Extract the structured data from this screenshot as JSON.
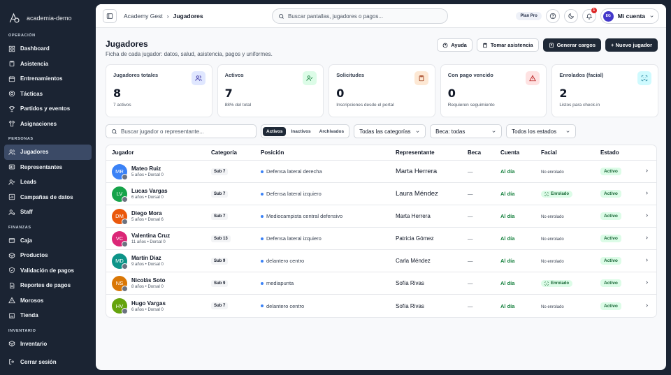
{
  "brand": {
    "name": "academia-demo"
  },
  "sidebar": {
    "sections": [
      {
        "title": "OPERACIÓN",
        "items": [
          {
            "label": "Dashboard",
            "icon": "grid-icon"
          },
          {
            "label": "Asistencia",
            "icon": "clipboard-icon"
          },
          {
            "label": "Entrenamientos",
            "icon": "calendar-icon"
          },
          {
            "label": "Tácticas",
            "icon": "target-icon"
          },
          {
            "label": "Partidos y eventos",
            "icon": "trophy-icon"
          },
          {
            "label": "Asignaciones",
            "icon": "shirt-icon"
          }
        ]
      },
      {
        "title": "PERSONAS",
        "items": [
          {
            "label": "Jugadores",
            "icon": "users-icon",
            "active": true
          },
          {
            "label": "Representantes",
            "icon": "id-card-icon"
          },
          {
            "label": "Leads",
            "icon": "user-plus-icon"
          },
          {
            "label": "Campañas de datos",
            "icon": "chart-icon"
          },
          {
            "label": "Staff",
            "icon": "user-gear-icon"
          }
        ]
      },
      {
        "title": "FINANZAS",
        "items": [
          {
            "label": "Caja",
            "icon": "wallet-icon"
          },
          {
            "label": "Productos",
            "icon": "box-icon"
          },
          {
            "label": "Validación de pagos",
            "icon": "shield-check-icon"
          },
          {
            "label": "Reportes de pagos",
            "icon": "file-icon"
          },
          {
            "label": "Morosos",
            "icon": "alert-icon"
          },
          {
            "label": "Tienda",
            "icon": "store-icon"
          }
        ]
      },
      {
        "title": "INVENTARIO",
        "items": [
          {
            "label": "Inventario",
            "icon": "package-icon"
          }
        ]
      }
    ],
    "logout": "Cerrar sesión"
  },
  "topbar": {
    "breadcrumb_root": "Academy Gest",
    "breadcrumb_sep": "›",
    "breadcrumb_current": "Jugadores",
    "search_placeholder": "Buscar pantallas, jugadores o pagos...",
    "plan": "Plan Pro",
    "notif_count": "1",
    "avatar_initials": "EG",
    "account_label": "Mi cuenta"
  },
  "page": {
    "title": "Jugadores",
    "subtitle": "Ficha de cada jugador: datos, salud, asistencia, pagos y uniformes.",
    "actions": {
      "help": "Ayuda",
      "attendance": "Tomar asistencia",
      "charges": "Generar cargos",
      "new_player": "+ Nuevo jugador"
    }
  },
  "stats": [
    {
      "label": "Jugadores totales",
      "value": "8",
      "sub": "7 activos",
      "icon": "users-icon",
      "bg": "#e0e7ff",
      "fg": "#3730a3"
    },
    {
      "label": "Activos",
      "value": "7",
      "sub": "88% del total",
      "icon": "user-check-icon",
      "bg": "#dcfce7",
      "fg": "#15803d"
    },
    {
      "label": "Solicitudes",
      "value": "0",
      "sub": "Inscripciones desde el portal",
      "icon": "clipboard-icon",
      "bg": "#fde8d4",
      "fg": "#9a3412"
    },
    {
      "label": "Con pago vencido",
      "value": "0",
      "sub": "Requieren seguimiento",
      "icon": "alert-icon",
      "bg": "#fee2e2",
      "fg": "#b91c1c"
    },
    {
      "label": "Enrolados (facial)",
      "value": "2",
      "sub": "Listos para check-in",
      "icon": "face-scan-icon",
      "bg": "#cffafe",
      "fg": "#0e7490"
    }
  ],
  "filters": {
    "search_placeholder": "Buscar jugador o representante...",
    "segments": [
      "Activos",
      "Inactivos",
      "Archivados"
    ],
    "category": "Todas las categorías",
    "beca": "Beca: todas",
    "estado": "Todos los estados"
  },
  "table": {
    "headers": {
      "jugador": "Jugador",
      "categoria": "Categoría",
      "posicion": "Posición",
      "representante": "Representante",
      "beca": "Beca",
      "cuenta": "Cuenta",
      "facial": "Facial",
      "estado": "Estado"
    },
    "rows": [
      {
        "initials": "MR",
        "color": "#3b82f6",
        "name": "Mateo Ruiz",
        "meta": "5 años • Dorsal 0",
        "cat": "Sub 7",
        "pos": "Defensa lateral derecha",
        "rep": "Marta Herrera",
        "rep_small": false,
        "beca": "—",
        "cuenta": "Al día",
        "facial": "No enrolado",
        "enrolled": false,
        "estado": "Activo"
      },
      {
        "initials": "LV",
        "color": "#16a34a",
        "name": "Lucas Vargas",
        "meta": "6 años • Dorsal 0",
        "cat": "Sub 7",
        "pos": "Defensa lateral izquiero",
        "rep": "Laura Méndez",
        "rep_small": false,
        "beca": "—",
        "cuenta": "Al día",
        "facial": "Enrolado",
        "enrolled": true,
        "estado": "Activo"
      },
      {
        "initials": "DM",
        "color": "#ea580c",
        "name": "Diego Mora",
        "meta": "5 años • Dorsal 6",
        "cat": "Sub 7",
        "pos": "Mediocampista central defensivo",
        "rep": "Marta Herrera",
        "rep_small": true,
        "beca": "—",
        "cuenta": "Al día",
        "facial": "No enrolado",
        "enrolled": false,
        "estado": "Activo"
      },
      {
        "initials": "VC",
        "color": "#db2777",
        "name": "Valentina Cruz",
        "meta": "11 años • Dorsal 0",
        "cat": "Sub 13",
        "pos": "Defensa lateral izquiero",
        "rep": "Patricia Gómez",
        "rep_small": true,
        "beca": "—",
        "cuenta": "Al día",
        "facial": "No enrolado",
        "enrolled": false,
        "estado": "Activo"
      },
      {
        "initials": "MD",
        "color": "#0d9488",
        "name": "Martín Díaz",
        "meta": "9 años • Dorsal 0",
        "cat": "Sub 9",
        "pos": "delantero centro",
        "rep": "Carla Méndez",
        "rep_small": true,
        "beca": "—",
        "cuenta": "Al día",
        "facial": "No enrolado",
        "enrolled": false,
        "estado": "Activo"
      },
      {
        "initials": "NS",
        "color": "#d97706",
        "name": "Nicolás Soto",
        "meta": "8 años • Dorsal 0",
        "cat": "Sub 9",
        "pos": "mediapunta",
        "rep": "Sofía Rivas",
        "rep_small": true,
        "beca": "—",
        "cuenta": "Al día",
        "facial": "Enrolado",
        "enrolled": true,
        "estado": "Activo"
      },
      {
        "initials": "HV",
        "color": "#65a30d",
        "name": "Hugo Vargas",
        "meta": "6 años • Dorsal 0",
        "cat": "Sub 7",
        "pos": "delantero centro",
        "rep": "Sofía Rivas",
        "rep_small": true,
        "beca": "—",
        "cuenta": "Al día",
        "facial": "No enrolado",
        "enrolled": false,
        "estado": "Activo"
      }
    ]
  }
}
